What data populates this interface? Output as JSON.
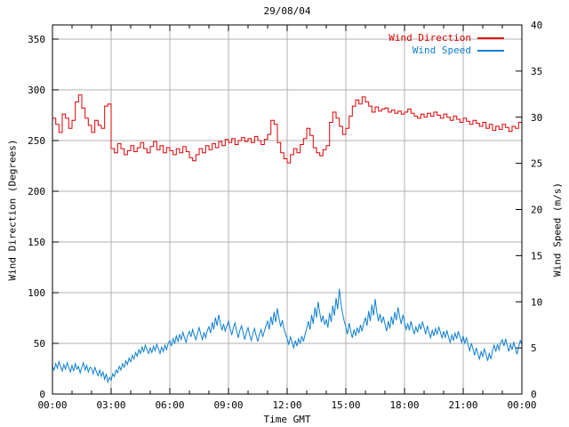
{
  "title": "29/08/04",
  "colors": {
    "direction": "#dd0000",
    "speed": "#0f7fd0",
    "grid": "#b0b0b0",
    "border": "#000000",
    "text": "#000000",
    "background": "#ffffff"
  },
  "chart_data": {
    "type": "line",
    "title": "29/08/04",
    "xlabel": "Time GMT",
    "grid": true,
    "legend_position": "top-right-inside",
    "legend": [
      {
        "label": "Wind Direction",
        "series": "wind-direction"
      },
      {
        "label": "Wind Speed",
        "series": "wind-speed"
      }
    ],
    "x_axis": {
      "range_minutes": [
        0,
        1440
      ],
      "major_tick_minutes": 180,
      "minor_tick_minutes": 60,
      "tick_labels": [
        "00:00",
        "03:00",
        "06:00",
        "09:00",
        "12:00",
        "15:00",
        "18:00",
        "21:00",
        "00:00"
      ]
    },
    "axes": {
      "left": {
        "label": "Wind Direction (Degrees)",
        "range": [
          0,
          364
        ],
        "ticks": [
          0,
          50,
          100,
          150,
          200,
          250,
          300,
          350
        ]
      },
      "right": {
        "label": "Wind Speed (m/s)",
        "range": [
          0,
          40
        ],
        "ticks": [
          0,
          5,
          10,
          15,
          20,
          25,
          30,
          35,
          40
        ]
      }
    },
    "series": [
      {
        "name": "Wind Direction",
        "axis": "left",
        "style": "steps",
        "color": "#dd0000",
        "x_step_minutes": 10,
        "values": [
          272,
          266,
          258,
          276,
          272,
          262,
          270,
          288,
          295,
          282,
          272,
          265,
          258,
          270,
          265,
          262,
          284,
          286,
          242,
          238,
          247,
          242,
          236,
          240,
          245,
          239,
          243,
          248,
          242,
          238,
          244,
          249,
          241,
          245,
          238,
          243,
          240,
          236,
          242,
          238,
          244,
          239,
          233,
          230,
          236,
          242,
          238,
          245,
          241,
          247,
          243,
          249,
          245,
          251,
          248,
          252,
          246,
          250,
          253,
          249,
          252,
          248,
          254,
          250,
          246,
          251,
          256,
          270,
          266,
          248,
          238,
          232,
          228,
          236,
          242,
          238,
          246,
          252,
          262,
          255,
          243,
          238,
          235,
          241,
          245,
          268,
          278,
          272,
          264,
          256,
          262,
          274,
          284,
          290,
          286,
          293,
          288,
          284,
          278,
          283,
          279,
          281,
          282,
          278,
          280,
          277,
          279,
          276,
          278,
          281,
          277,
          274,
          272,
          276,
          273,
          277,
          274,
          278,
          275,
          272,
          276,
          273,
          270,
          274,
          271,
          268,
          272,
          269,
          266,
          270,
          267,
          264,
          268,
          262,
          266,
          260,
          264,
          261,
          266,
          263,
          259,
          264,
          262,
          268,
          272
        ]
      },
      {
        "name": "Wind Speed",
        "axis": "right",
        "style": "line",
        "color": "#0f7fd0",
        "x_step_minutes": 5,
        "values": [
          3.0,
          2.6,
          3.3,
          2.8,
          3.5,
          3.0,
          2.5,
          3.2,
          2.7,
          3.4,
          2.9,
          2.4,
          3.1,
          2.5,
          3.3,
          2.7,
          3.0,
          2.3,
          2.9,
          3.4,
          2.6,
          3.1,
          2.4,
          2.9,
          2.8,
          2.2,
          2.9,
          2.4,
          2.0,
          2.6,
          1.9,
          2.4,
          1.6,
          2.2,
          1.3,
          1.8,
          1.5,
          2.2,
          1.9,
          2.6,
          2.3,
          3.0,
          2.6,
          3.3,
          2.9,
          3.6,
          3.2,
          3.9,
          3.5,
          4.2,
          3.8,
          4.5,
          4.1,
          4.8,
          4.4,
          5.1,
          4.6,
          5.3,
          4.8,
          4.4,
          5.0,
          4.5,
          5.2,
          4.7,
          5.4,
          4.9,
          4.4,
          5.1,
          4.6,
          5.3,
          4.8,
          5.5,
          5.8,
          5.2,
          6.0,
          5.5,
          6.3,
          5.7,
          6.5,
          5.9,
          6.7,
          6.1,
          5.6,
          6.4,
          6.8,
          6.2,
          7.0,
          6.4,
          5.9,
          6.6,
          7.2,
          6.5,
          5.9,
          6.7,
          6.1,
          6.9,
          7.3,
          6.6,
          7.8,
          7.0,
          8.3,
          7.4,
          8.6,
          7.7,
          6.9,
          7.6,
          6.8,
          7.4,
          7.9,
          7.1,
          6.4,
          7.2,
          7.7,
          6.8,
          6.1,
          6.9,
          7.4,
          6.6,
          5.9,
          6.7,
          7.2,
          6.4,
          5.8,
          6.6,
          7.1,
          6.3,
          5.7,
          6.5,
          7.0,
          6.2,
          6.8,
          7.4,
          7.9,
          7.0,
          8.4,
          7.5,
          8.9,
          7.8,
          9.3,
          8.2,
          7.3,
          8.0,
          7.1,
          6.5,
          6.0,
          5.4,
          6.2,
          5.6,
          5.0,
          5.8,
          5.2,
          6.0,
          5.5,
          6.3,
          5.7,
          6.5,
          7.1,
          7.9,
          7.0,
          8.6,
          7.6,
          9.4,
          8.3,
          10.0,
          8.8,
          7.8,
          8.5,
          7.5,
          8.1,
          7.2,
          8.8,
          7.8,
          9.6,
          8.5,
          10.4,
          9.2,
          11.4,
          9.8,
          8.7,
          7.9,
          7.3,
          6.5,
          7.7,
          6.8,
          6.1,
          7.0,
          6.3,
          7.2,
          6.6,
          7.5,
          6.8,
          7.7,
          8.3,
          7.4,
          9.0,
          7.9,
          9.7,
          8.5,
          10.3,
          8.9,
          7.9,
          8.7,
          7.7,
          8.4,
          7.6,
          6.8,
          7.9,
          7.1,
          8.4,
          7.5,
          8.9,
          8.0,
          9.4,
          8.4,
          7.6,
          8.6,
          7.8,
          7.0,
          7.6,
          6.9,
          7.9,
          7.1,
          6.5,
          7.3,
          6.7,
          7.6,
          7.0,
          7.8,
          7.2,
          6.5,
          7.4,
          6.7,
          6.1,
          6.9,
          6.3,
          7.1,
          6.5,
          7.3,
          6.7,
          6.1,
          6.8,
          6.1,
          6.9,
          6.2,
          5.6,
          6.4,
          5.8,
          6.6,
          6.0,
          6.8,
          6.2,
          5.6,
          6.3,
          5.5,
          6.1,
          5.3,
          4.7,
          5.5,
          4.9,
          4.2,
          5.0,
          4.4,
          3.8,
          4.6,
          4.1,
          4.9,
          4.3,
          3.6,
          4.4,
          3.8,
          4.7,
          5.3,
          4.6,
          5.4,
          4.8,
          5.6,
          5.9,
          5.2,
          6.0,
          5.3,
          4.6,
          5.4,
          4.8,
          5.6,
          5.0,
          4.3,
          5.1,
          5.8,
          5.4
        ]
      }
    ]
  }
}
